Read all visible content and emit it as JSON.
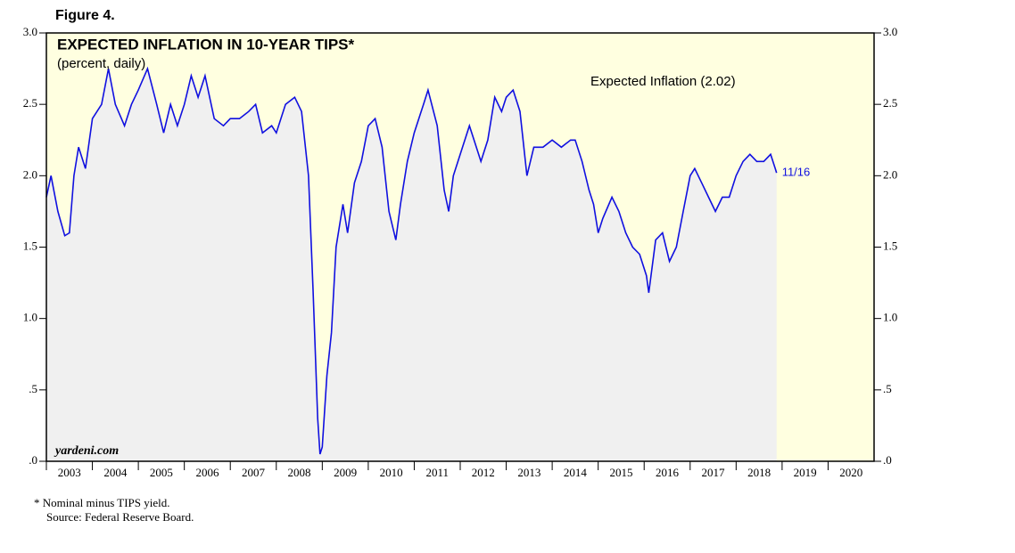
{
  "figure_label": "Figure 4.",
  "chart_data": {
    "type": "line",
    "title": "EXPECTED INFLATION IN 10-YEAR TIPS*",
    "subtitle": "(percent, daily)",
    "annotations": [
      "Expected Inflation (2.02)",
      "11/16"
    ],
    "watermark": "yardeni.com",
    "footnotes": [
      "*  Nominal minus TIPS yield.",
      "Source: Federal Reserve Board."
    ],
    "xlim": [
      2003,
      2021
    ],
    "xticks": [
      2003,
      2004,
      2005,
      2006,
      2007,
      2008,
      2009,
      2010,
      2011,
      2012,
      2013,
      2014,
      2015,
      2016,
      2017,
      2018,
      2019,
      2020
    ],
    "ylim": [
      0,
      3
    ],
    "yticks": [
      {
        "value": 0,
        "label": ".0"
      },
      {
        "value": 0.5,
        "label": ".5"
      },
      {
        "value": 1,
        "label": "1.0"
      },
      {
        "value": 1.5,
        "label": "1.5"
      },
      {
        "value": 2,
        "label": "2.0"
      },
      {
        "value": 2.5,
        "label": "2.5"
      },
      {
        "value": 3,
        "label": "3.0"
      }
    ],
    "background": "#ffffe0",
    "fill": "#f0f0f0",
    "series": [
      {
        "name": "Expected Inflation",
        "color": "#1010e0",
        "x": [
          2003.0,
          2003.1,
          2003.25,
          2003.4,
          2003.5,
          2003.6,
          2003.7,
          2003.85,
          2004.0,
          2004.2,
          2004.35,
          2004.5,
          2004.7,
          2004.85,
          2005.0,
          2005.2,
          2005.4,
          2005.55,
          2005.7,
          2005.85,
          2006.0,
          2006.15,
          2006.3,
          2006.45,
          2006.65,
          2006.85,
          2007.0,
          2007.2,
          2007.4,
          2007.55,
          2007.7,
          2007.9,
          2008.0,
          2008.2,
          2008.4,
          2008.55,
          2008.7,
          2008.8,
          2008.9,
          2008.95,
          2009.0,
          2009.1,
          2009.2,
          2009.3,
          2009.45,
          2009.55,
          2009.7,
          2009.85,
          2010.0,
          2010.15,
          2010.3,
          2010.45,
          2010.6,
          2010.7,
          2010.85,
          2011.0,
          2011.2,
          2011.3,
          2011.5,
          2011.65,
          2011.75,
          2011.85,
          2012.0,
          2012.2,
          2012.3,
          2012.45,
          2012.6,
          2012.75,
          2012.9,
          2013.0,
          2013.15,
          2013.3,
          2013.45,
          2013.6,
          2013.8,
          2014.0,
          2014.2,
          2014.4,
          2014.5,
          2014.65,
          2014.8,
          2014.9,
          2015.0,
          2015.1,
          2015.3,
          2015.45,
          2015.6,
          2015.75,
          2015.9,
          2016.05,
          2016.1,
          2016.25,
          2016.4,
          2016.55,
          2016.7,
          2016.85,
          2017.0,
          2017.1,
          2017.25,
          2017.4,
          2017.55,
          2017.7,
          2017.85,
          2018.0,
          2018.15,
          2018.3,
          2018.45,
          2018.6,
          2018.75,
          2018.85,
          2018.88
        ],
        "values": [
          1.85,
          2.0,
          1.75,
          1.58,
          1.6,
          2.0,
          2.2,
          2.05,
          2.4,
          2.5,
          2.75,
          2.5,
          2.35,
          2.5,
          2.6,
          2.75,
          2.5,
          2.3,
          2.5,
          2.35,
          2.5,
          2.7,
          2.55,
          2.7,
          2.4,
          2.35,
          2.4,
          2.4,
          2.45,
          2.5,
          2.3,
          2.35,
          2.3,
          2.5,
          2.55,
          2.45,
          2.0,
          1.2,
          0.3,
          0.05,
          0.1,
          0.6,
          0.9,
          1.5,
          1.8,
          1.6,
          1.95,
          2.1,
          2.35,
          2.4,
          2.2,
          1.75,
          1.55,
          1.8,
          2.1,
          2.3,
          2.5,
          2.6,
          2.35,
          1.9,
          1.75,
          2.0,
          2.15,
          2.35,
          2.25,
          2.1,
          2.25,
          2.55,
          2.45,
          2.55,
          2.6,
          2.45,
          2.0,
          2.2,
          2.2,
          2.25,
          2.2,
          2.25,
          2.25,
          2.1,
          1.9,
          1.8,
          1.6,
          1.7,
          1.85,
          1.75,
          1.6,
          1.5,
          1.45,
          1.3,
          1.18,
          1.55,
          1.6,
          1.4,
          1.5,
          1.75,
          2.0,
          2.05,
          1.95,
          1.85,
          1.75,
          1.85,
          1.85,
          2.0,
          2.1,
          2.15,
          2.1,
          2.1,
          2.15,
          2.05,
          2.02
        ]
      }
    ]
  }
}
